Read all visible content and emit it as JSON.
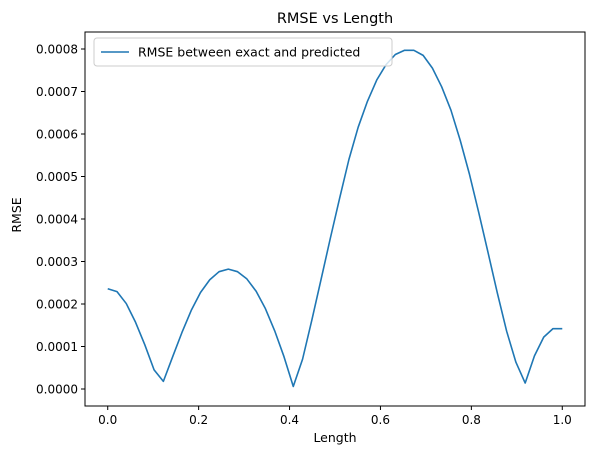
{
  "chart_data": {
    "type": "line",
    "title": "RMSE vs Length",
    "xlabel": "Length",
    "ylabel": "RMSE",
    "xlim": [
      -0.05,
      1.05
    ],
    "ylim": [
      -4e-05,
      0.00084
    ],
    "x_ticks": [
      0.0,
      0.2,
      0.4,
      0.6,
      0.8,
      1.0
    ],
    "x_tick_labels": [
      "0.0",
      "0.2",
      "0.4",
      "0.6",
      "0.8",
      "1.0"
    ],
    "y_ticks": [
      0.0,
      0.0001,
      0.0002,
      0.0003,
      0.0004,
      0.0005,
      0.0006,
      0.0007,
      0.0008
    ],
    "y_tick_labels": [
      "0.0000",
      "0.0001",
      "0.0002",
      "0.0003",
      "0.0004",
      "0.0005",
      "0.0006",
      "0.0007",
      "0.0008"
    ],
    "grid": false,
    "legend_position": "top-left",
    "series": [
      {
        "name": "RMSE between exact and predicted",
        "color": "#1f77b4",
        "x": [
          0.0,
          0.0204,
          0.0408,
          0.0612,
          0.0816,
          0.102,
          0.1224,
          0.1429,
          0.1633,
          0.1837,
          0.2041,
          0.2245,
          0.2449,
          0.2653,
          0.2857,
          0.3061,
          0.3265,
          0.3469,
          0.3673,
          0.3878,
          0.4082,
          0.4286,
          0.449,
          0.4694,
          0.4898,
          0.5102,
          0.5306,
          0.551,
          0.5714,
          0.5918,
          0.6122,
          0.6327,
          0.6531,
          0.6735,
          0.6939,
          0.7143,
          0.7347,
          0.7551,
          0.7755,
          0.7959,
          0.8163,
          0.8367,
          0.8571,
          0.8776,
          0.898,
          0.9184,
          0.9388,
          0.9592,
          0.9796,
          1.0
        ],
        "y": [
          0.000236,
          0.000229,
          0.000201,
          0.000157,
          0.000104,
          4.5e-05,
          1.8e-05,
          7.6e-05,
          0.000133,
          0.000185,
          0.000227,
          0.000257,
          0.000276,
          0.000282,
          0.000276,
          0.000259,
          0.00023,
          0.000189,
          0.000137,
          7.6e-05,
          6e-06,
          7e-05,
          0.000162,
          0.000258,
          0.000355,
          0.000449,
          0.00054,
          0.000616,
          0.000677,
          0.000727,
          0.000763,
          0.000787,
          0.000797,
          0.000797,
          0.000785,
          0.000755,
          0.000711,
          0.000656,
          0.000585,
          0.000505,
          0.000415,
          0.000321,
          0.000226,
          0.000136,
          6.3e-05,
          1.4e-05,
          7.8e-05,
          0.000122,
          0.000142,
          0.000142
        ]
      }
    ]
  }
}
